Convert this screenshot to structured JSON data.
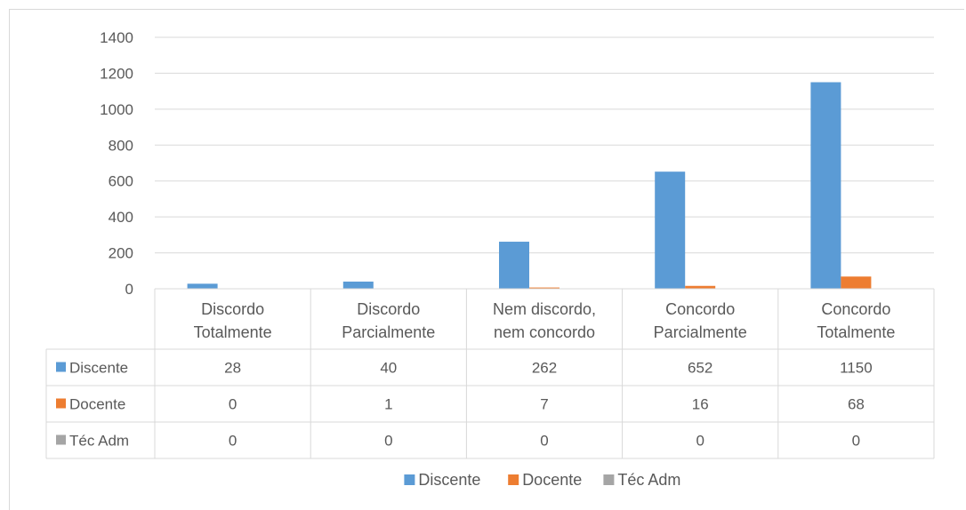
{
  "chart_data": {
    "type": "bar",
    "categories": [
      [
        "Discordo",
        "Totalmente"
      ],
      [
        "Discordo",
        "Parcialmente"
      ],
      [
        "Nem discordo,",
        "nem concordo"
      ],
      [
        "Concordo",
        "Parcialmente"
      ],
      [
        "Concordo",
        "Totalmente"
      ]
    ],
    "series": [
      {
        "name": "Discente",
        "color": "#5b9bd5",
        "values": [
          28,
          40,
          262,
          652,
          1150
        ]
      },
      {
        "name": "Docente",
        "color": "#ed7d31",
        "values": [
          0,
          1,
          7,
          16,
          68
        ]
      },
      {
        "name": "Téc Adm",
        "color": "#a5a5a5",
        "values": [
          0,
          0,
          0,
          0,
          0
        ]
      }
    ],
    "y_ticks": [
      0,
      200,
      400,
      600,
      800,
      1000,
      1200,
      1400
    ],
    "ylim": [
      0,
      1400
    ],
    "grid": true,
    "data_table": true,
    "legend_position": "bottom"
  }
}
